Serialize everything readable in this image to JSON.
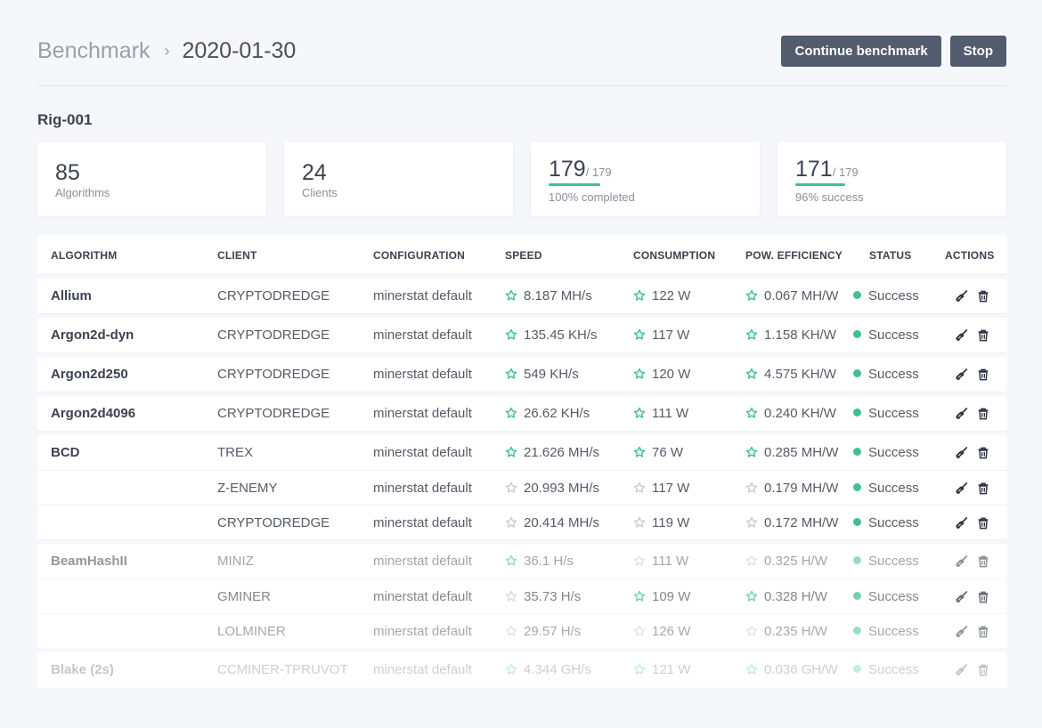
{
  "breadcrumb": {
    "root": "Benchmark",
    "separator": "›",
    "current": "2020-01-30"
  },
  "buttons": {
    "continue": "Continue benchmark",
    "stop": "Stop"
  },
  "rig": {
    "name": "Rig-001"
  },
  "stats": {
    "algorithms": {
      "value": "85",
      "label": "Algorithms"
    },
    "clients": {
      "value": "24",
      "label": "Clients"
    },
    "completed": {
      "value": "179",
      "total": "/ 179",
      "label": "100% completed",
      "fraction": 1.0
    },
    "success": {
      "value": "171",
      "total": "/ 179",
      "label": "96% success",
      "fraction": 0.96
    }
  },
  "columns": [
    "ALGORITHM",
    "CLIENT",
    "CONFIGURATION",
    "SPEED",
    "CONSUMPTION",
    "POW. EFFICIENCY",
    "STATUS",
    "ACTIONS"
  ],
  "colors": {
    "accent": "#3fc18f",
    "muted_star": "#c9ccd3",
    "button": "#535c6e"
  },
  "groups": [
    {
      "algorithm": "Allium",
      "rows": [
        {
          "client": "CRYPTODREDGE",
          "config": "minerstat default",
          "speed": "8.187 MH/s",
          "speed_best": true,
          "consumption": "122 W",
          "cons_best": true,
          "efficiency": "0.067 MH/W",
          "eff_best": true,
          "status": "Success"
        }
      ]
    },
    {
      "algorithm": "Argon2d-dyn",
      "rows": [
        {
          "client": "CRYPTODREDGE",
          "config": "minerstat default",
          "speed": "135.45 KH/s",
          "speed_best": true,
          "consumption": "117 W",
          "cons_best": true,
          "efficiency": "1.158 KH/W",
          "eff_best": true,
          "status": "Success"
        }
      ]
    },
    {
      "algorithm": "Argon2d250",
      "rows": [
        {
          "client": "CRYPTODREDGE",
          "config": "minerstat default",
          "speed": "549 KH/s",
          "speed_best": true,
          "consumption": "120 W",
          "cons_best": true,
          "efficiency": "4.575 KH/W",
          "eff_best": true,
          "status": "Success"
        }
      ]
    },
    {
      "algorithm": "Argon2d4096",
      "rows": [
        {
          "client": "CRYPTODREDGE",
          "config": "minerstat default",
          "speed": "26.62 KH/s",
          "speed_best": true,
          "consumption": "111 W",
          "cons_best": true,
          "efficiency": "0.240 KH/W",
          "eff_best": true,
          "status": "Success"
        }
      ]
    },
    {
      "algorithm": "BCD",
      "rows": [
        {
          "client": "TREX",
          "config": "minerstat default",
          "speed": "21.626 MH/s",
          "speed_best": true,
          "consumption": "76 W",
          "cons_best": true,
          "efficiency": "0.285 MH/W",
          "eff_best": true,
          "status": "Success"
        },
        {
          "client": "Z-ENEMY",
          "config": "minerstat default",
          "speed": "20.993 MH/s",
          "speed_best": false,
          "consumption": "117 W",
          "cons_best": false,
          "efficiency": "0.179 MH/W",
          "eff_best": false,
          "status": "Success"
        },
        {
          "client": "CRYPTODREDGE",
          "config": "minerstat default",
          "speed": "20.414 MH/s",
          "speed_best": false,
          "consumption": "119 W",
          "cons_best": false,
          "efficiency": "0.172 MH/W",
          "eff_best": false,
          "status": "Success"
        }
      ]
    },
    {
      "algorithm": "BeamHashII",
      "rows": [
        {
          "client": "MINIZ",
          "config": "minerstat default",
          "speed": "36.1 H/s",
          "speed_best": true,
          "consumption": "111 W",
          "cons_best": false,
          "efficiency": "0.325 H/W",
          "eff_best": false,
          "status": "Success"
        },
        {
          "client": "GMINER",
          "config": "minerstat default",
          "speed": "35.73 H/s",
          "speed_best": false,
          "consumption": "109 W",
          "cons_best": true,
          "efficiency": "0.328 H/W",
          "eff_best": true,
          "status": "Success"
        },
        {
          "client": "LOLMINER",
          "config": "minerstat default",
          "speed": "29.57 H/s",
          "speed_best": false,
          "consumption": "126 W",
          "cons_best": false,
          "efficiency": "0.235 H/W",
          "eff_best": false,
          "status": "Success"
        }
      ]
    },
    {
      "algorithm": "Blake (2s)",
      "rows": [
        {
          "client": "CCMINER-TPRUVOT",
          "config": "minerstat default",
          "speed": "4.344 GH/s",
          "speed_best": true,
          "consumption": "121 W",
          "cons_best": true,
          "efficiency": "0.036 GH/W",
          "eff_best": true,
          "status": "Success"
        }
      ]
    }
  ]
}
